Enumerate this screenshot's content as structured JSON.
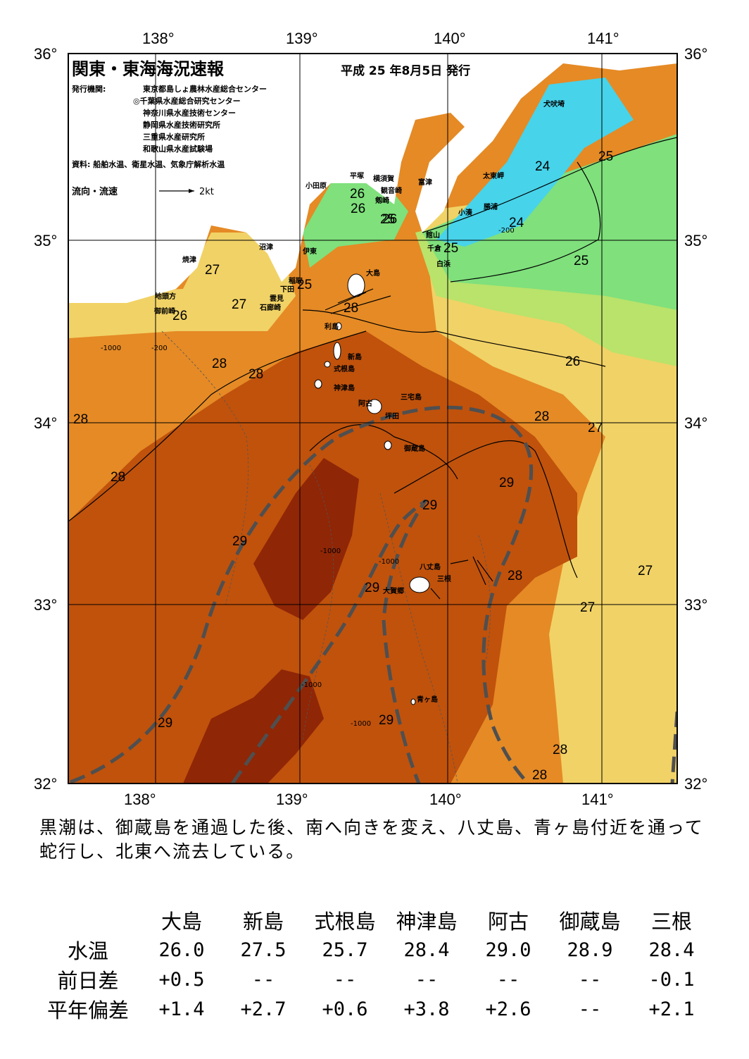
{
  "title": "関東・東海海況速報",
  "issue_date": "平成 25 年8月5日 発行",
  "publishers_label": "発行機関:",
  "publishers": [
    "東京都島しょ農林水産総合センター",
    "◎千葉県水産総合研究センター",
    "神奈川県水産技術センター",
    "静岡県水産技術研究所",
    "三重県水産研究所",
    "和歌山県水産試験場"
  ],
  "sources": "資料: 船舶水温、衛星水温、気象庁解析水温",
  "current_legend": {
    "label": "流向・流速",
    "scale": "2kt"
  },
  "lon_labels": [
    "138°",
    "139°",
    "140°",
    "141°"
  ],
  "lat_labels": [
    "36°",
    "35°",
    "34°",
    "33°",
    "32°"
  ],
  "place_names": [
    "犬吠埼",
    "太東岬",
    "勝浦",
    "小湊",
    "富津",
    "横須賀",
    "観音崎",
    "剱崎",
    "平塚",
    "小田原",
    "館山",
    "千倉",
    "白浜",
    "伊東",
    "沼津",
    "稲取",
    "下田",
    "雲見",
    "石廊崎",
    "焼津",
    "地頭方",
    "御前崎",
    "大島",
    "利島",
    "新島",
    "式根島",
    "神津島",
    "三宅島",
    "阿古",
    "坪田",
    "御蔵島",
    "八丈島",
    "三根",
    "大賀郷",
    "青ヶ島"
  ],
  "isotherm_labels": [
    "24",
    "24",
    "25",
    "25",
    "25",
    "25",
    "25",
    "26",
    "26",
    "26",
    "26",
    "26",
    "27",
    "27",
    "27",
    "27",
    "27",
    "28",
    "28",
    "28",
    "28",
    "28",
    "28",
    "28",
    "28",
    "28",
    "29",
    "29",
    "29",
    "29",
    "29",
    "29"
  ],
  "depth_labels": [
    "-1000",
    "-200"
  ],
  "colors": {
    "t24": "#47d3ea",
    "t25": "#7fe07c",
    "t26": "#b9e36a",
    "t27": "#f1d266",
    "t28": "#e58a25",
    "t29": "#c0520c",
    "t30": "#8f2606",
    "kuroshio": "#4f4f4f"
  },
  "summary": "黒潮は、御蔵島を通過した後、南へ向きを変え、八丈島、青ヶ島付近を通って蛇行し、北東へ流去している。",
  "table": {
    "columns": [
      "大島",
      "新島",
      "式根島",
      "神津島",
      "阿古",
      "御蔵島",
      "三根"
    ],
    "rows": [
      {
        "label": "水温",
        "values": [
          "26.0",
          "27.5",
          "25.7",
          "28.4",
          "29.0",
          "28.9",
          "28.4"
        ]
      },
      {
        "label": "前日差",
        "values": [
          "+0.5",
          "--",
          "--",
          "--",
          "--",
          "--",
          "-0.1"
        ]
      },
      {
        "label": "平年偏差",
        "values": [
          "+1.4",
          "+2.7",
          "+0.6",
          "+3.8",
          "+2.6",
          "--",
          "+2.1"
        ]
      }
    ]
  }
}
